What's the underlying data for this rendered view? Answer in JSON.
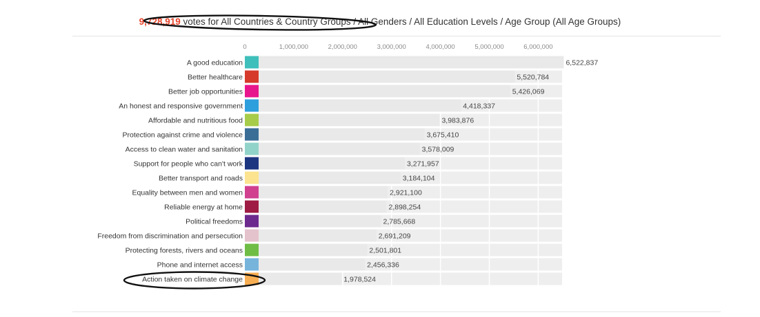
{
  "header": {
    "vote_count": "9,728,919",
    "description": " votes for All Countries & Country Groups / All Genders / All Education Levels / Age Group (All Age Groups)"
  },
  "chart_data": {
    "type": "bar",
    "orientation": "horizontal",
    "title": "",
    "xlabel": "",
    "ylabel": "",
    "xlim": [
      0,
      6500000
    ],
    "ticks": [
      0,
      1000000,
      2000000,
      3000000,
      4000000,
      5000000,
      6000000
    ],
    "tick_labels": [
      "0",
      "1,000,000",
      "2,000,000",
      "3,000,000",
      "4,000,000",
      "5,000,000",
      "6,000,000"
    ],
    "grid": true,
    "track_color": "#eeeeee",
    "categories": [
      "A good education",
      "Better healthcare",
      "Better job opportunities",
      "An honest and responsive government",
      "Affordable and nutritious food",
      "Protection against crime and violence",
      "Access to clean water and sanitation",
      "Support for people who can't work",
      "Better transport and roads",
      "Equality between men and women",
      "Reliable energy at home",
      "Political freedoms",
      "Freedom from discrimination and persecution",
      "Protecting forests, rivers and oceans",
      "Phone and internet access",
      "Action taken on climate change"
    ],
    "values": [
      6522837,
      5520784,
      5426069,
      4418337,
      3983876,
      3675410,
      3578009,
      3271957,
      3184104,
      2921100,
      2898254,
      2785668,
      2691209,
      2501801,
      2456336,
      1978524
    ],
    "value_labels": [
      "6,522,837",
      "5,520,784",
      "5,426,069",
      "4,418,337",
      "3,983,876",
      "3,675,410",
      "3,578,009",
      "3,271,957",
      "3,184,104",
      "2,921,100",
      "2,898,254",
      "2,785,668",
      "2,691,209",
      "2,501,801",
      "2,456,336",
      "1,978,524"
    ],
    "colors": [
      "#3fbfbb",
      "#d63a2b",
      "#e8168c",
      "#2e9fdd",
      "#a6cc4a",
      "#3b6e97",
      "#92d3c9",
      "#1d3680",
      "#fbe38f",
      "#d0408f",
      "#9e1b43",
      "#6d2a8e",
      "#e4c3cc",
      "#6fbd45",
      "#77b4dc",
      "#f8ae53"
    ],
    "highlighted": [
      "vote_count",
      "Action taken on climate change"
    ]
  }
}
